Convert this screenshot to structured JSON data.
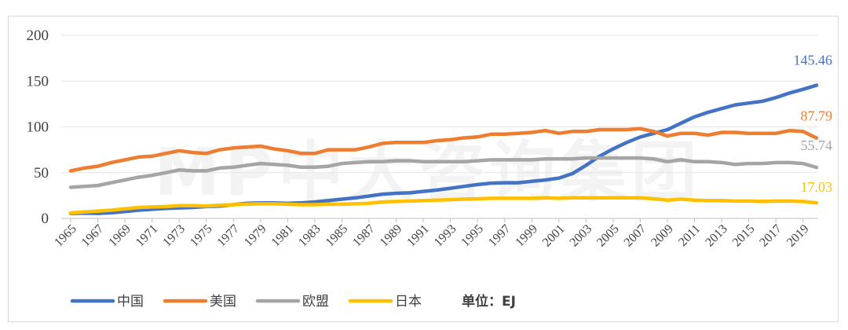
{
  "chart_data": {
    "type": "line",
    "title": "",
    "xlabel": "",
    "ylabel": "",
    "unit_label": "单位：EJ",
    "watermark": "MP中大咨询集团",
    "ylim": [
      0,
      200
    ],
    "yticks": [
      "0",
      "50",
      "100",
      "150",
      "200"
    ],
    "xticks": [
      "1965",
      "1967",
      "1969",
      "1971",
      "1973",
      "1975",
      "1977",
      "1979",
      "1981",
      "1983",
      "1985",
      "1987",
      "1989",
      "1991",
      "1993",
      "1995",
      "1997",
      "1999",
      "2001",
      "2003",
      "2005",
      "2007",
      "2009",
      "2011",
      "2013",
      "2015",
      "2017",
      "2019"
    ],
    "grid": true,
    "legend_position": "bottom-left",
    "x": [
      1965,
      1966,
      1967,
      1968,
      1969,
      1970,
      1971,
      1972,
      1973,
      1974,
      1975,
      1976,
      1977,
      1978,
      1979,
      1980,
      1981,
      1982,
      1983,
      1984,
      1985,
      1986,
      1987,
      1988,
      1989,
      1990,
      1991,
      1992,
      1993,
      1994,
      1995,
      1996,
      1997,
      1998,
      1999,
      2000,
      2001,
      2002,
      2003,
      2004,
      2005,
      2006,
      2007,
      2008,
      2009,
      2010,
      2011,
      2012,
      2013,
      2014,
      2015,
      2016,
      2017,
      2018,
      2019,
      2020
    ],
    "series": [
      {
        "name": "中国",
        "color": "#4472c4",
        "end_label": "145.46",
        "values": [
          5.5,
          5.8,
          5.5,
          6.2,
          7.5,
          9,
          10,
          11,
          11.5,
          12,
          13,
          13.5,
          15,
          16.5,
          17,
          17,
          16.5,
          17,
          18,
          19.5,
          21,
          22.5,
          24.5,
          26.5,
          27.5,
          28,
          29.5,
          31,
          33,
          35,
          37,
          38.5,
          39,
          39,
          40.5,
          42,
          44,
          49,
          58,
          68,
          76,
          83,
          89,
          93,
          97,
          104,
          111,
          116,
          120,
          124,
          126,
          128,
          132,
          137,
          141,
          145.46
        ]
      },
      {
        "name": "美国",
        "color": "#ed7d31",
        "end_label": "87.79",
        "values": [
          52,
          55,
          57,
          61,
          64,
          67,
          68,
          71,
          74,
          72,
          71,
          75,
          77,
          78,
          79,
          76,
          74,
          71,
          71,
          75,
          75,
          75,
          78,
          82,
          83,
          83,
          83,
          85,
          86,
          88,
          89,
          92,
          92,
          93,
          94,
          96,
          93,
          95,
          95,
          97,
          97,
          97,
          98,
          95,
          90,
          93,
          93,
          91,
          94,
          94,
          93,
          93,
          93,
          96,
          95,
          87.79
        ]
      },
      {
        "name": "欧盟",
        "color": "#a5a5a5",
        "end_label": "55.74",
        "values": [
          34,
          35,
          36,
          39,
          42,
          45,
          47,
          50,
          53,
          52,
          52,
          55,
          56,
          58,
          60,
          59,
          58,
          56,
          56,
          57,
          60,
          61,
          62,
          62,
          63,
          63,
          62,
          62,
          62,
          62,
          63,
          64,
          64,
          64,
          64,
          65,
          65,
          65,
          66,
          66,
          66,
          66,
          66,
          65,
          62,
          64,
          62,
          62,
          61,
          59,
          60,
          60,
          61,
          61,
          60,
          55.74
        ]
      },
      {
        "name": "日本",
        "color": "#ffc000",
        "end_label": "17.03",
        "values": [
          6,
          7,
          8,
          9,
          10.5,
          12,
          12.5,
          13,
          14,
          14,
          13.5,
          14.5,
          15,
          15.5,
          16,
          16,
          15.5,
          15,
          15,
          15.5,
          15.5,
          16,
          16.5,
          18,
          18.5,
          19,
          19.5,
          20,
          20.5,
          21,
          21.5,
          22,
          22,
          22,
          22,
          22.5,
          22,
          22.5,
          22.5,
          22.5,
          22.5,
          22.5,
          22.5,
          21.5,
          20,
          21,
          20,
          19.5,
          19.5,
          19,
          19,
          18.5,
          19,
          19,
          18.5,
          17.03
        ]
      }
    ]
  }
}
